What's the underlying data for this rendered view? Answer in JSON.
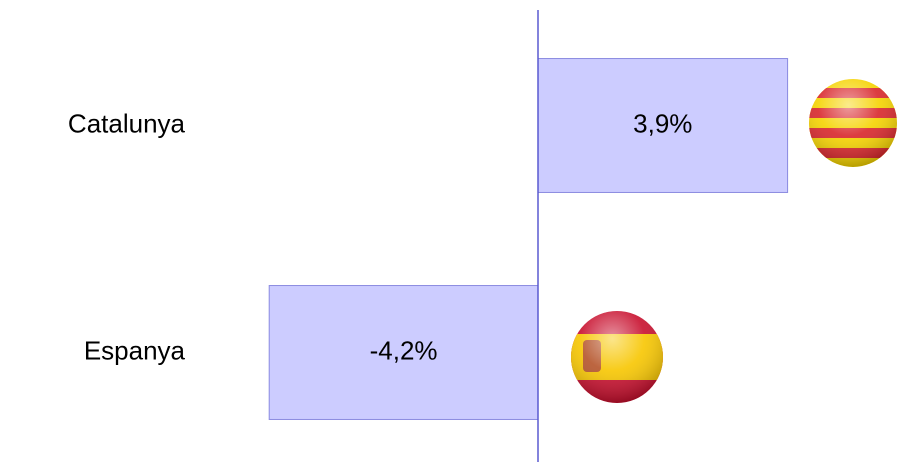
{
  "chart_data": {
    "type": "hbar",
    "categories": [
      "Catalunya",
      "Espanya"
    ],
    "values": [
      3.9,
      -4.2
    ],
    "value_labels": [
      "3,9%",
      "-4,2%"
    ],
    "color": "#ccccff",
    "xlim": [
      -5,
      5
    ]
  }
}
